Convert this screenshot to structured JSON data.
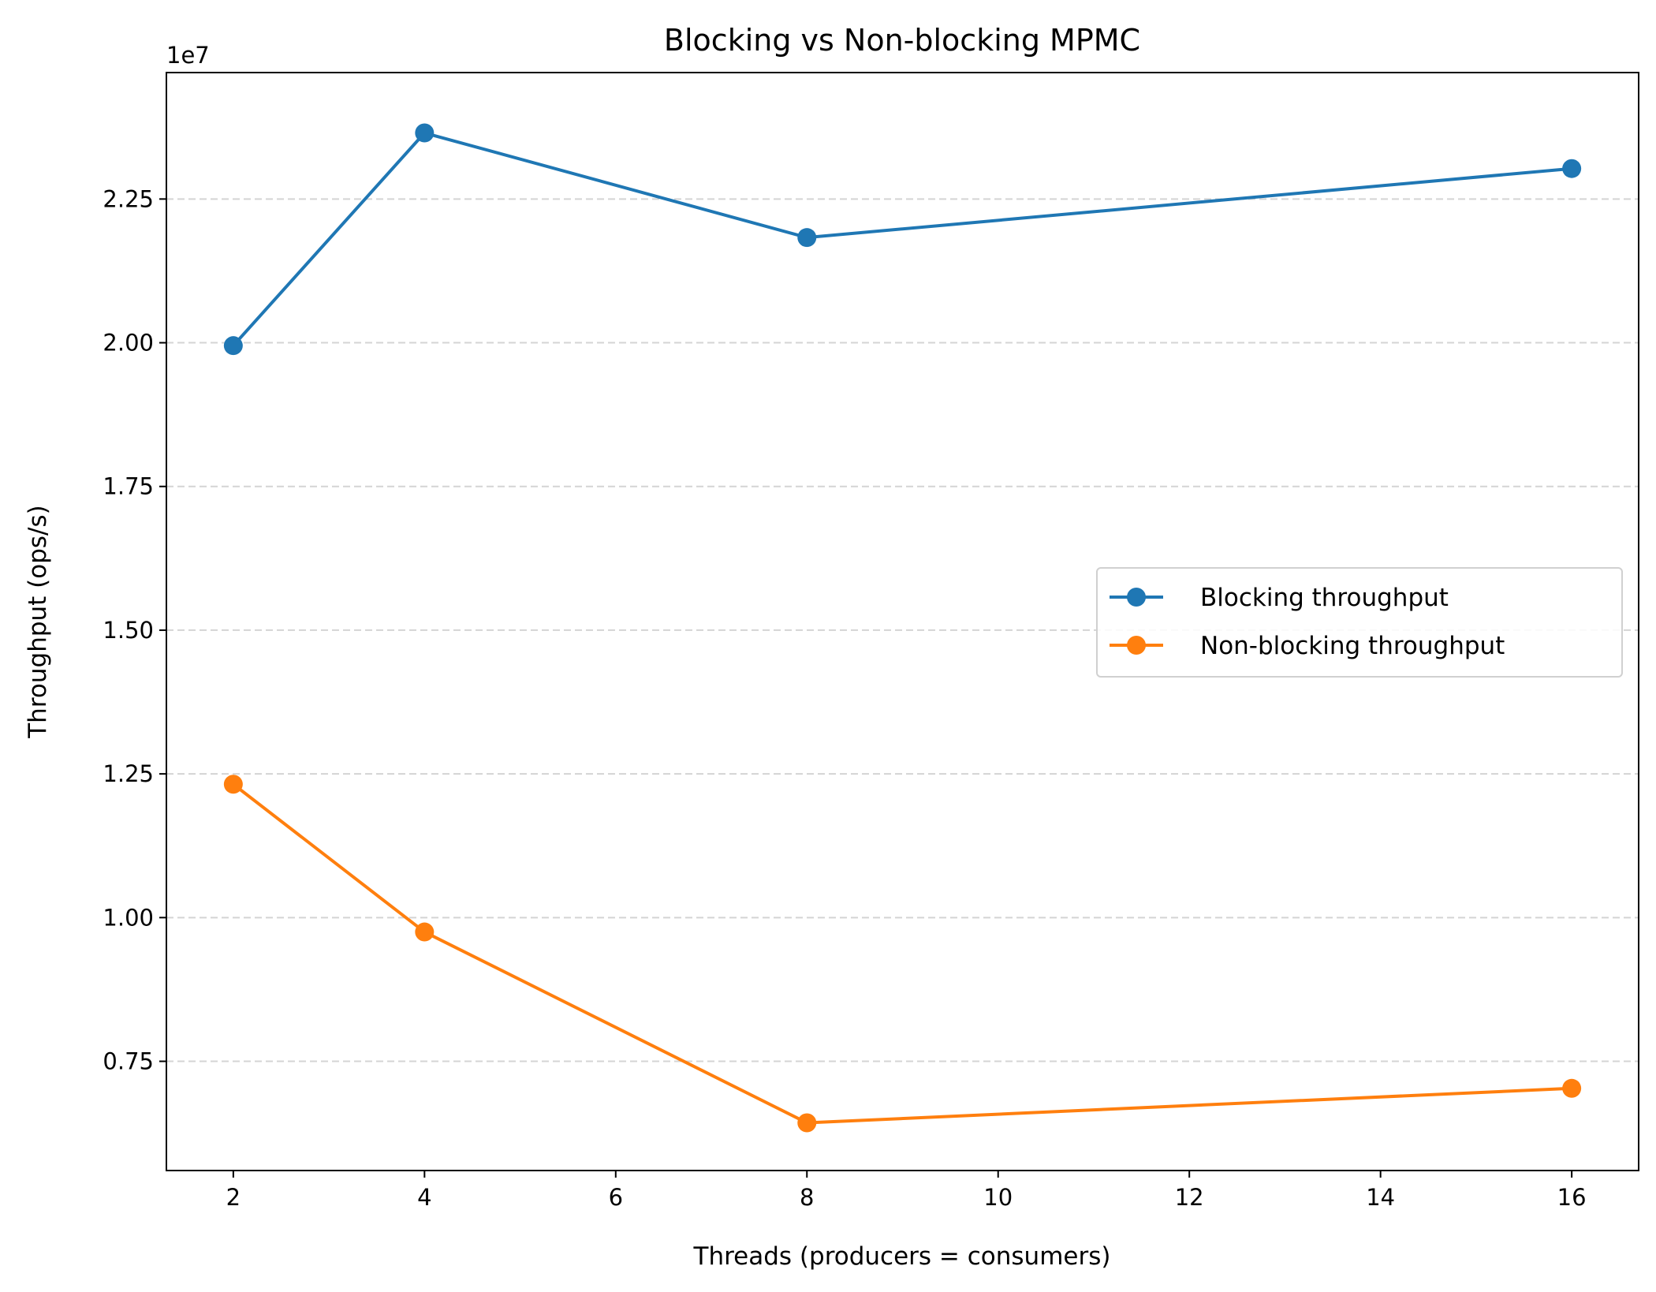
{
  "chart_data": {
    "type": "line",
    "title": "Blocking vs Non-blocking MPMC",
    "xlabel": "Threads (producers = consumers)",
    "ylabel": "Throughput (ops/s)",
    "y_offset_label": "1e7",
    "x": [
      2,
      4,
      8,
      16
    ],
    "xlim": [
      1.3,
      16.7
    ],
    "ylim": [
      5600000,
      24700000
    ],
    "x_ticks": [
      2,
      4,
      6,
      8,
      10,
      12,
      14,
      16
    ],
    "x_tick_labels": [
      "2",
      "4",
      "6",
      "8",
      "10",
      "12",
      "14",
      "16"
    ],
    "y_ticks": [
      7500000,
      10000000,
      12500000,
      15000000,
      17500000,
      20000000,
      22500000
    ],
    "y_tick_labels": [
      "0.75",
      "1.00",
      "1.25",
      "1.50",
      "1.75",
      "2.00",
      "2.25"
    ],
    "grid": "horizontal dashed",
    "legend_position": "center-right",
    "series": [
      {
        "name": "Blocking throughput",
        "color": "#1f77b4",
        "marker": "circle",
        "values": [
          19950000,
          23650000,
          21830000,
          23030000
        ]
      },
      {
        "name": "Non-blocking throughput",
        "color": "#ff7f0e",
        "marker": "circle",
        "values": [
          12320000,
          9750000,
          6430000,
          7030000
        ]
      }
    ]
  }
}
